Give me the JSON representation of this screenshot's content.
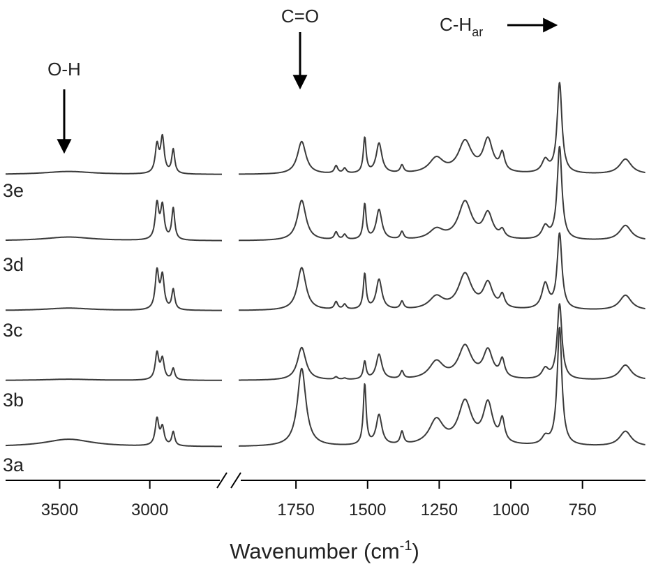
{
  "chart_data": {
    "type": "line",
    "title": "",
    "xlabel": "Wavenumber (cm",
    "xlabel_sup": "-1",
    "xlabel_close": ")",
    "ylabel": "",
    "x_reversed": true,
    "x_axis_break": [
      2600,
      1950
    ],
    "xlim_left": [
      3800,
      2600
    ],
    "xlim_right": [
      1950,
      530
    ],
    "xticks": [
      {
        "value": 3500,
        "label": "3500"
      },
      {
        "value": 3000,
        "label": "3000"
      },
      {
        "value": 1750,
        "label": "1750"
      },
      {
        "value": 1500,
        "label": "1500"
      },
      {
        "value": 1250,
        "label": "1250"
      },
      {
        "value": 1000,
        "label": "1000"
      },
      {
        "value": 750,
        "label": "750"
      }
    ],
    "annotations": [
      {
        "name": "oh",
        "label": "O-H",
        "x": 3450,
        "arrow": "down"
      },
      {
        "name": "co",
        "label": "C=O",
        "x": 1730,
        "arrow": "down"
      },
      {
        "name": "char",
        "label_main": "C-H",
        "label_sub": "ar",
        "x": 825,
        "arrow": "right"
      }
    ],
    "series": [
      {
        "name": "3a",
        "offset": 0
      },
      {
        "name": "3b",
        "offset": 1
      },
      {
        "name": "3c",
        "offset": 2
      },
      {
        "name": "3d",
        "offset": 3
      },
      {
        "name": "3e",
        "offset": 4
      }
    ],
    "peaks": [
      {
        "name": "O-H stretch",
        "x": 3450,
        "w": 160,
        "heights": [
          0.3,
          0.05,
          0.1,
          0.15,
          0.12
        ]
      },
      {
        "name": "C-H 2960",
        "x": 2960,
        "w": 12,
        "heights": [
          1.05,
          1.05,
          1.5,
          1.4,
          1.1
        ]
      },
      {
        "name": "C-H 2930",
        "x": 2930,
        "w": 12,
        "heights": [
          0.7,
          0.8,
          1.3,
          1.3,
          1.4
        ]
      },
      {
        "name": "C-H 2870",
        "x": 2870,
        "w": 10,
        "heights": [
          0.55,
          0.45,
          0.8,
          1.25,
          0.95
        ]
      },
      {
        "name": "C=O",
        "x": 1730,
        "w": 18,
        "heights": [
          3.1,
          1.3,
          1.7,
          1.6,
          1.3
        ]
      },
      {
        "name": "1610",
        "x": 1610,
        "w": 7,
        "heights": [
          0.0,
          0.1,
          0.3,
          0.3,
          0.3
        ]
      },
      {
        "name": "1580",
        "x": 1580,
        "w": 7,
        "heights": [
          0.0,
          0.05,
          0.2,
          0.2,
          0.2
        ]
      },
      {
        "name": "1510",
        "x": 1510,
        "w": 6,
        "heights": [
          2.4,
          0.7,
          1.4,
          1.4,
          1.4
        ]
      },
      {
        "name": "1460",
        "x": 1460,
        "w": 12,
        "heights": [
          1.2,
          1.0,
          1.2,
          1.2,
          1.2
        ]
      },
      {
        "name": "1380",
        "x": 1380,
        "w": 7,
        "heights": [
          0.5,
          0.3,
          0.3,
          0.3,
          0.3
        ]
      },
      {
        "name": "1260",
        "x": 1260,
        "w": 30,
        "heights": [
          1.0,
          0.7,
          0.5,
          0.4,
          0.6
        ]
      },
      {
        "name": "1160",
        "x": 1160,
        "w": 28,
        "heights": [
          1.7,
          1.3,
          1.4,
          1.5,
          1.25
        ]
      },
      {
        "name": "1080",
        "x": 1080,
        "w": 20,
        "heights": [
          1.6,
          1.1,
          1.0,
          1.0,
          1.3
        ]
      },
      {
        "name": "1030",
        "x": 1030,
        "w": 10,
        "heights": [
          0.9,
          0.7,
          0.5,
          0.3,
          0.7
        ]
      },
      {
        "name": "880",
        "x": 880,
        "w": 14,
        "heights": [
          0.3,
          0.4,
          1.0,
          0.5,
          0.5
        ]
      },
      {
        "name": "C-H ar 830",
        "x": 830,
        "w": 10,
        "heights": [
          4.7,
          3.0,
          3.0,
          3.7,
          3.6
        ]
      },
      {
        "name": "600",
        "x": 600,
        "w": 25,
        "heights": [
          0.6,
          0.6,
          0.6,
          0.6,
          0.6
        ]
      }
    ]
  }
}
